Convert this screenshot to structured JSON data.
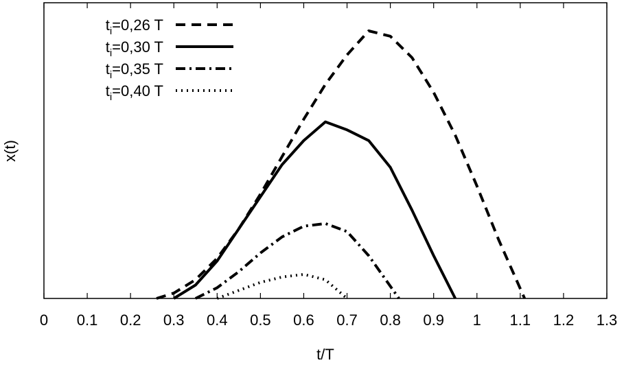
{
  "chart_data": {
    "type": "line",
    "xlabel": "t/T",
    "ylabel": "x(t)",
    "xlim": [
      0,
      1.3
    ],
    "ylim": [
      0,
      1
    ],
    "x_ticks": [
      "0",
      "0.1",
      "0.2",
      "0.3",
      "0.4",
      "0.5",
      "0.6",
      "0.7",
      "0.8",
      "0.9",
      "1",
      "1.1",
      "1.2",
      "1.3"
    ],
    "y_tick_labels": false,
    "grid": false,
    "legend_position": "top-left",
    "series": [
      {
        "name_main": "t",
        "name_sub": "i",
        "name_rest": "=0,26 T",
        "style": "dashed",
        "x": [
          0.26,
          0.3,
          0.35,
          0.4,
          0.45,
          0.5,
          0.55,
          0.6,
          0.65,
          0.7,
          0.75,
          0.8,
          0.85,
          0.9,
          0.95,
          1.0,
          1.05,
          1.11
        ],
        "y": [
          0.0,
          0.02,
          0.07,
          0.15,
          0.26,
          0.39,
          0.53,
          0.67,
          0.8,
          0.91,
          1.0,
          0.98,
          0.9,
          0.77,
          0.61,
          0.42,
          0.22,
          0.0
        ]
      },
      {
        "name_main": "t",
        "name_sub": "i",
        "name_rest": "=0,30 T",
        "style": "solid",
        "x": [
          0.3,
          0.35,
          0.4,
          0.45,
          0.5,
          0.55,
          0.6,
          0.65,
          0.7,
          0.75,
          0.8,
          0.85,
          0.9,
          0.95
        ],
        "y": [
          0.0,
          0.05,
          0.14,
          0.26,
          0.38,
          0.5,
          0.59,
          0.66,
          0.63,
          0.59,
          0.49,
          0.33,
          0.16,
          0.0
        ]
      },
      {
        "name_main": "t",
        "name_sub": "i",
        "name_rest": "=0,35 T",
        "style": "dashdot",
        "x": [
          0.35,
          0.4,
          0.45,
          0.5,
          0.55,
          0.6,
          0.65,
          0.7,
          0.75,
          0.82
        ],
        "y": [
          0.0,
          0.04,
          0.1,
          0.17,
          0.23,
          0.27,
          0.28,
          0.25,
          0.16,
          0.0
        ]
      },
      {
        "name_main": "t",
        "name_sub": "i",
        "name_rest": "=0,40 T",
        "style": "dotted",
        "x": [
          0.4,
          0.45,
          0.5,
          0.55,
          0.6,
          0.65,
          0.7
        ],
        "y": [
          0.0,
          0.03,
          0.06,
          0.08,
          0.09,
          0.07,
          0.0
        ]
      }
    ]
  }
}
